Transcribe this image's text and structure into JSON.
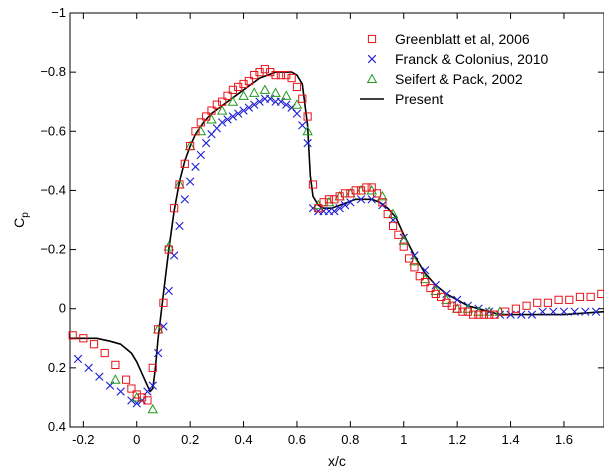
{
  "chart_data": {
    "type": "scatter",
    "title": "",
    "xlabel": "x/c",
    "ylabel": "C",
    "ylabel_subscript": "p",
    "xlim": [
      -0.25,
      1.75
    ],
    "ylim": [
      -1.0,
      0.4
    ],
    "y_reversed": true,
    "grid": false,
    "legend_position": "top-right",
    "x_ticks": [
      "-0.2",
      "0",
      "0.2",
      "0.4",
      "0.6",
      "0.8",
      "1",
      "1.2",
      "1.4",
      "1.6"
    ],
    "x_tick_values": [
      -0.2,
      0,
      0.2,
      0.4,
      0.6,
      0.8,
      1.0,
      1.2,
      1.4,
      1.6
    ],
    "y_ticks": [
      "−1",
      "−0.8",
      "−0.6",
      "−0.4",
      "−0.2",
      "0",
      "0.2",
      "0.4"
    ],
    "y_tick_values": [
      -1.0,
      -0.8,
      -0.6,
      -0.4,
      -0.2,
      0,
      0.2,
      0.4
    ],
    "series": [
      {
        "name": "Greenblatt et al, 2006",
        "marker": "square",
        "color": "#e8141b",
        "x": [
          -0.24,
          -0.2,
          -0.16,
          -0.12,
          -0.08,
          -0.04,
          -0.02,
          0.0,
          0.02,
          0.04,
          0.06,
          0.08,
          0.1,
          0.12,
          0.14,
          0.16,
          0.18,
          0.2,
          0.22,
          0.24,
          0.26,
          0.28,
          0.3,
          0.32,
          0.34,
          0.36,
          0.38,
          0.4,
          0.42,
          0.44,
          0.46,
          0.48,
          0.5,
          0.52,
          0.54,
          0.56,
          0.58,
          0.6,
          0.62,
          0.64,
          0.66,
          0.68,
          0.7,
          0.72,
          0.74,
          0.76,
          0.78,
          0.8,
          0.82,
          0.84,
          0.86,
          0.88,
          0.9,
          0.92,
          0.94,
          0.96,
          0.98,
          1.0,
          1.02,
          1.04,
          1.06,
          1.08,
          1.1,
          1.12,
          1.14,
          1.16,
          1.18,
          1.2,
          1.22,
          1.24,
          1.26,
          1.28,
          1.3,
          1.32,
          1.34,
          1.38,
          1.42,
          1.46,
          1.5,
          1.54,
          1.58,
          1.62,
          1.66,
          1.7,
          1.74
        ],
        "y": [
          0.09,
          0.1,
          0.12,
          0.15,
          0.19,
          0.24,
          0.27,
          0.29,
          0.3,
          0.31,
          0.2,
          0.07,
          -0.02,
          -0.2,
          -0.34,
          -0.42,
          -0.49,
          -0.55,
          -0.6,
          -0.63,
          -0.65,
          -0.67,
          -0.69,
          -0.7,
          -0.72,
          -0.74,
          -0.75,
          -0.76,
          -0.77,
          -0.79,
          -0.8,
          -0.81,
          -0.8,
          -0.79,
          -0.79,
          -0.79,
          -0.78,
          -0.75,
          -0.71,
          -0.65,
          -0.42,
          -0.34,
          -0.36,
          -0.37,
          -0.37,
          -0.38,
          -0.39,
          -0.39,
          -0.4,
          -0.4,
          -0.41,
          -0.41,
          -0.39,
          -0.36,
          -0.32,
          -0.28,
          -0.25,
          -0.21,
          -0.17,
          -0.14,
          -0.11,
          -0.09,
          -0.07,
          -0.05,
          -0.04,
          -0.02,
          -0.01,
          0.0,
          0.01,
          0.01,
          0.02,
          0.02,
          0.02,
          0.02,
          0.02,
          0.01,
          0.0,
          -0.01,
          -0.02,
          -0.02,
          -0.03,
          -0.03,
          -0.04,
          -0.04,
          -0.05
        ]
      },
      {
        "name": "Franck & Colonius, 2010",
        "marker": "x",
        "color": "#1f1fd4",
        "x": [
          -0.22,
          -0.18,
          -0.14,
          -0.1,
          -0.06,
          -0.02,
          0.0,
          0.02,
          0.04,
          0.06,
          0.08,
          0.1,
          0.12,
          0.14,
          0.16,
          0.18,
          0.2,
          0.22,
          0.24,
          0.26,
          0.28,
          0.3,
          0.32,
          0.34,
          0.36,
          0.38,
          0.4,
          0.42,
          0.44,
          0.46,
          0.48,
          0.5,
          0.52,
          0.54,
          0.56,
          0.58,
          0.6,
          0.62,
          0.64,
          0.66,
          0.68,
          0.7,
          0.72,
          0.74,
          0.76,
          0.78,
          0.8,
          0.84,
          0.88,
          0.92,
          0.96,
          1.0,
          1.04,
          1.08,
          1.12,
          1.16,
          1.2,
          1.24,
          1.28,
          1.32,
          1.36,
          1.4,
          1.44,
          1.48,
          1.52,
          1.56,
          1.6,
          1.64,
          1.68,
          1.72
        ],
        "y": [
          0.17,
          0.2,
          0.23,
          0.26,
          0.28,
          0.31,
          0.32,
          0.31,
          0.28,
          0.26,
          0.15,
          0.06,
          -0.06,
          -0.18,
          -0.28,
          -0.37,
          -0.43,
          -0.48,
          -0.52,
          -0.56,
          -0.59,
          -0.61,
          -0.63,
          -0.64,
          -0.65,
          -0.66,
          -0.67,
          -0.68,
          -0.69,
          -0.7,
          -0.71,
          -0.71,
          -0.7,
          -0.7,
          -0.69,
          -0.68,
          -0.66,
          -0.62,
          -0.56,
          -0.34,
          -0.33,
          -0.33,
          -0.33,
          -0.33,
          -0.34,
          -0.35,
          -0.36,
          -0.37,
          -0.37,
          -0.35,
          -0.3,
          -0.24,
          -0.18,
          -0.13,
          -0.08,
          -0.05,
          -0.03,
          -0.01,
          0.0,
          0.01,
          0.02,
          0.02,
          0.02,
          0.02,
          0.01,
          0.01,
          0.01,
          0.01,
          0.01,
          0.01
        ]
      },
      {
        "name": "Seifert & Pack, 2002",
        "marker": "triangle",
        "color": "#1f9a1f",
        "x": [
          -0.08,
          0.0,
          0.06,
          0.08,
          0.12,
          0.16,
          0.2,
          0.24,
          0.28,
          0.32,
          0.36,
          0.4,
          0.44,
          0.48,
          0.52,
          0.56,
          0.6,
          0.64,
          0.68,
          0.72,
          0.76,
          0.8,
          0.84,
          0.88,
          0.92,
          0.96,
          1.0,
          1.04,
          1.08,
          1.12,
          1.16,
          1.2,
          1.24,
          1.28,
          1.32,
          1.36
        ],
        "y": [
          0.24,
          0.3,
          0.34,
          0.07,
          -0.21,
          -0.42,
          -0.55,
          -0.6,
          -0.64,
          -0.67,
          -0.7,
          -0.72,
          -0.73,
          -0.74,
          -0.73,
          -0.72,
          -0.69,
          -0.6,
          -0.35,
          -0.36,
          -0.38,
          -0.39,
          -0.4,
          -0.4,
          -0.38,
          -0.32,
          -0.23,
          -0.16,
          -0.1,
          -0.06,
          -0.03,
          0.0,
          0.0,
          0.01,
          0.01,
          0.01
        ]
      },
      {
        "name": "Present",
        "marker": "line",
        "color": "#000000",
        "x": [
          -0.25,
          -0.2,
          -0.15,
          -0.1,
          -0.06,
          -0.02,
          0.0,
          0.02,
          0.04,
          0.05,
          0.06,
          0.07,
          0.08,
          0.1,
          0.12,
          0.14,
          0.16,
          0.18,
          0.2,
          0.22,
          0.25,
          0.28,
          0.31,
          0.34,
          0.37,
          0.4,
          0.43,
          0.46,
          0.49,
          0.52,
          0.55,
          0.58,
          0.6,
          0.62,
          0.64,
          0.65,
          0.66,
          0.68,
          0.7,
          0.73,
          0.76,
          0.79,
          0.82,
          0.85,
          0.88,
          0.91,
          0.94,
          0.97,
          1.0,
          1.04,
          1.08,
          1.12,
          1.16,
          1.2,
          1.24,
          1.28,
          1.32,
          1.36,
          1.4,
          1.5,
          1.6,
          1.75
        ],
        "y": [
          0.1,
          0.1,
          0.1,
          0.11,
          0.12,
          0.15,
          0.18,
          0.22,
          0.26,
          0.28,
          0.27,
          0.2,
          0.1,
          -0.05,
          -0.2,
          -0.33,
          -0.43,
          -0.5,
          -0.55,
          -0.59,
          -0.63,
          -0.66,
          -0.68,
          -0.7,
          -0.72,
          -0.74,
          -0.76,
          -0.78,
          -0.79,
          -0.8,
          -0.8,
          -0.8,
          -0.79,
          -0.76,
          -0.62,
          -0.45,
          -0.38,
          -0.35,
          -0.34,
          -0.34,
          -0.35,
          -0.36,
          -0.37,
          -0.37,
          -0.37,
          -0.36,
          -0.34,
          -0.31,
          -0.25,
          -0.18,
          -0.12,
          -0.08,
          -0.05,
          -0.03,
          -0.01,
          0.0,
          0.01,
          0.02,
          0.02,
          0.02,
          0.02,
          0.01
        ]
      }
    ]
  }
}
